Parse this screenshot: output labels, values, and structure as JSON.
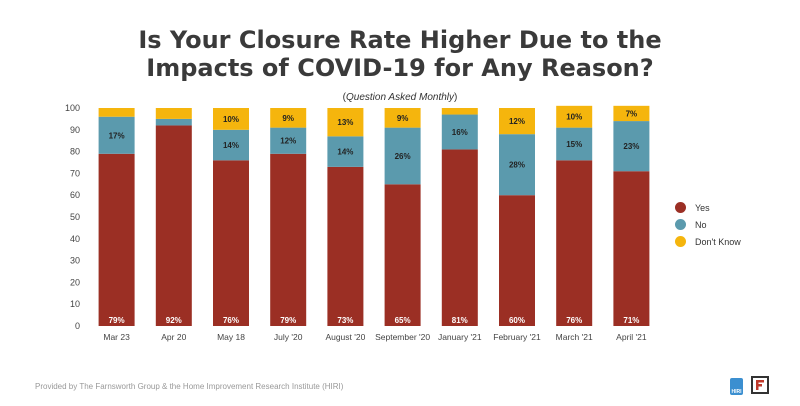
{
  "title_line1": "Is Your Closure Rate Higher Due to the",
  "title_line2": "Impacts of COVID-19 for Any Reason?",
  "subtitle_open": "(",
  "subtitle_italic": "Question Asked Monthly",
  "subtitle_close": ")",
  "footer": "Provided by The Farnsworth Group & the Home Improvement Research Institute (HIRI)",
  "logo_hiri_text": "HIRI",
  "colors": {
    "yes": "#9b2f24",
    "no": "#5b9aad",
    "dont_know": "#f5b50d"
  },
  "chart_data": {
    "type": "bar",
    "stacked": true,
    "title": "Is Your Closure Rate Higher Due to the Impacts of COVID-19 for Any Reason?",
    "subtitle": "(Question Asked Monthly)",
    "categories": [
      "Mar 23",
      "Apr 20",
      "May 18",
      "July '20",
      "August '20",
      "September '20",
      "January '21",
      "February '21",
      "March '21",
      "April '21"
    ],
    "ylim": [
      0,
      100
    ],
    "yticks": [
      0,
      10,
      20,
      30,
      40,
      50,
      60,
      70,
      80,
      90,
      100
    ],
    "legend_position": "right",
    "series": [
      {
        "name": "Yes",
        "values": [
          79,
          92,
          76,
          79,
          73,
          65,
          81,
          60,
          76,
          71
        ],
        "labels": [
          "79%",
          "92%",
          "76%",
          "79%",
          "73%",
          "65%",
          "81%",
          "60%",
          "76%",
          "71%"
        ]
      },
      {
        "name": "No",
        "values": [
          17,
          3,
          14,
          12,
          14,
          26,
          16,
          28,
          15,
          23
        ],
        "labels": [
          "17%",
          "",
          "14%",
          "12%",
          "14%",
          "26%",
          "16%",
          "28%",
          "15%",
          "23%"
        ]
      },
      {
        "name": "Don't Know",
        "values": [
          4,
          5,
          10,
          9,
          13,
          9,
          3,
          12,
          10,
          7
        ],
        "labels": [
          "",
          "",
          "10%",
          "9%",
          "13%",
          "9%",
          "",
          "12%",
          "10%",
          "7%"
        ]
      }
    ]
  }
}
